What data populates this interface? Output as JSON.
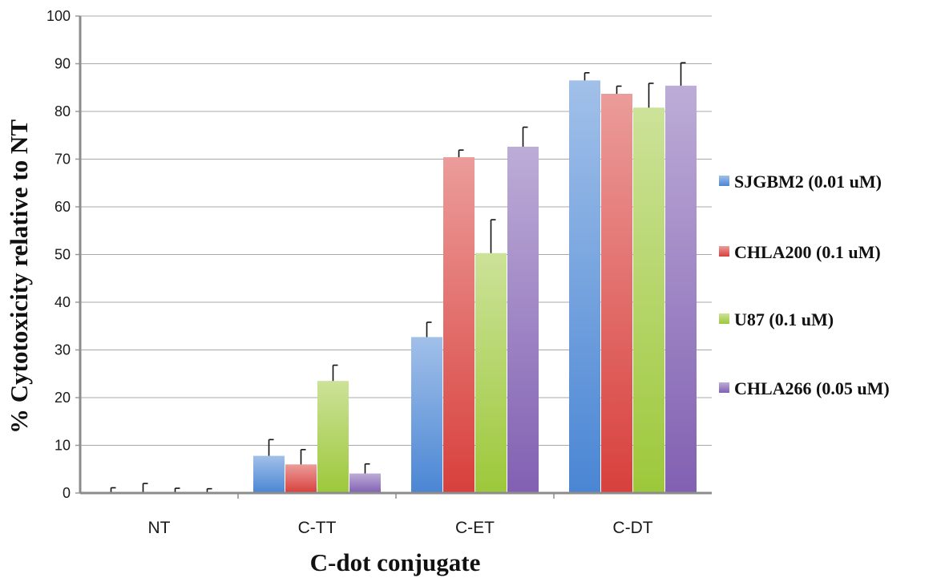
{
  "chart_data": {
    "type": "bar",
    "xlabel": "C-dot conjugate",
    "ylabel": "% Cytotoxicity relative to NT",
    "ylim": [
      0,
      100
    ],
    "yticks": [
      "0",
      "10",
      "20",
      "30",
      "40",
      "50",
      "60",
      "70",
      "80",
      "90",
      "100"
    ],
    "grid": true,
    "legend_position": "right",
    "categories": [
      "NT",
      "C-TT",
      "C-ET",
      "C-DT"
    ],
    "series": [
      {
        "name": "SJGBM2 (0.01 uM)",
        "color": "#4a86d4",
        "values": [
          0,
          7.8,
          32.7,
          86.5
        ],
        "errors": [
          1.1,
          3.4,
          3.1,
          1.6
        ]
      },
      {
        "name": "CHLA200 (0.1 uM)",
        "color": "#d8403c",
        "values": [
          0,
          6.0,
          70.4,
          83.7
        ],
        "errors": [
          2.0,
          3.1,
          1.5,
          1.6
        ]
      },
      {
        "name": "U87 (0.1 uM)",
        "color": "#9dc83a",
        "values": [
          0,
          23.5,
          50.3,
          80.8
        ],
        "errors": [
          1.0,
          3.3,
          7.0,
          5.1
        ]
      },
      {
        "name": "CHLA266 (0.05 uM)",
        "color": "#8160b2",
        "values": [
          0,
          4.1,
          72.6,
          85.4
        ],
        "errors": [
          0.9,
          2.0,
          4.1,
          4.8
        ]
      }
    ]
  }
}
